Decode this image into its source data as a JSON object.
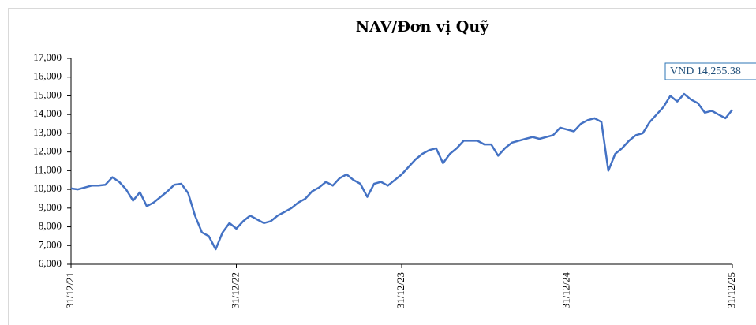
{
  "chart_data": {
    "type": "line",
    "title": "NAV/Đơn vị Quỹ",
    "annotation": "VND 14,255.38",
    "categories": [
      "31/12/21",
      null,
      null,
      null,
      null,
      null,
      null,
      null,
      null,
      null,
      null,
      null,
      null,
      null,
      null,
      null,
      null,
      null,
      null,
      null,
      null,
      null,
      null,
      null,
      "31/12/22",
      null,
      null,
      null,
      null,
      null,
      null,
      null,
      null,
      null,
      null,
      null,
      null,
      null,
      null,
      null,
      null,
      null,
      null,
      null,
      null,
      null,
      null,
      null,
      "31/12/23",
      null,
      null,
      null,
      null,
      null,
      null,
      null,
      null,
      null,
      null,
      null,
      null,
      null,
      null,
      null,
      null,
      null,
      null,
      null,
      null,
      null,
      null,
      null,
      "31/12/24",
      null,
      null,
      null,
      null,
      null,
      null,
      null,
      null,
      null,
      null,
      null,
      null,
      null,
      null,
      null,
      null,
      null,
      null,
      null,
      null,
      null,
      null,
      null,
      "31/12/25"
    ],
    "series": [
      {
        "name": "NAV",
        "color": "#4472c4",
        "values": [
          10050,
          10000,
          10100,
          10200,
          10200,
          10250,
          10650,
          10400,
          10000,
          9400,
          9850,
          9100,
          9300,
          9600,
          9900,
          10250,
          10300,
          9800,
          8600,
          7700,
          7500,
          6800,
          7700,
          8200,
          7900,
          8300,
          8600,
          8400,
          8200,
          8300,
          8600,
          8800,
          9000,
          9300,
          9500,
          9900,
          10100,
          10400,
          10200,
          10600,
          10800,
          10500,
          10300,
          9600,
          10300,
          10400,
          10200,
          10500,
          10800,
          11200,
          11600,
          11900,
          12100,
          12200,
          11400,
          11900,
          12200,
          12600,
          12600,
          12600,
          12400,
          12400,
          11800,
          12200,
          12500,
          12600,
          12700,
          12800,
          12700,
          12800,
          12900,
          13300,
          13200,
          13100,
          13500,
          13700,
          13800,
          13600,
          11000,
          11900,
          12200,
          12600,
          12900,
          13000,
          13600,
          14000,
          14400,
          15000,
          14700,
          15100,
          14800,
          14600,
          14100,
          14200,
          14000,
          13800,
          14255.38
        ]
      }
    ],
    "ylim": [
      6000,
      17000
    ],
    "yticks": [
      {
        "value": 6000,
        "label": "6,000"
      },
      {
        "value": 7000,
        "label": "7,000"
      },
      {
        "value": 8000,
        "label": "8,000"
      },
      {
        "value": 9000,
        "label": "9,000"
      },
      {
        "value": 10000,
        "label": "10,000"
      },
      {
        "value": 11000,
        "label": "11,000"
      },
      {
        "value": 12000,
        "label": "12,000"
      },
      {
        "value": 13000,
        "label": "13,000"
      },
      {
        "value": 14000,
        "label": "14,000"
      },
      {
        "value": 15000,
        "label": "15,000"
      },
      {
        "value": 16000,
        "label": "16,000"
      },
      {
        "value": 17000,
        "label": "17,000"
      }
    ],
    "grid": false
  }
}
